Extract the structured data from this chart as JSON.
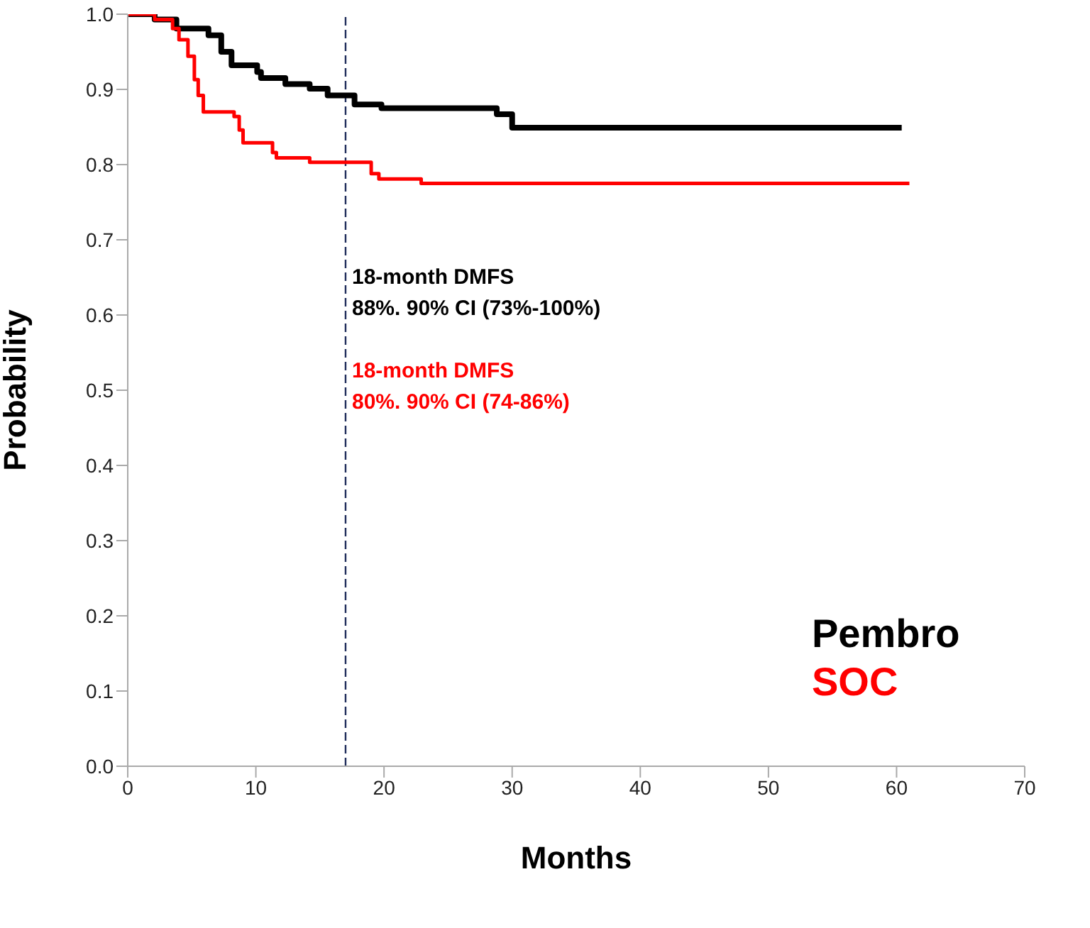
{
  "chart_data": {
    "type": "step",
    "xlabel": "Months",
    "ylabel": "Probability",
    "xlim": [
      0,
      70
    ],
    "xticks": [
      0,
      10,
      20,
      30,
      40,
      50,
      60,
      70
    ],
    "ylim": [
      0,
      1
    ],
    "yticks": [
      {
        "value": 0,
        "label": "0.0"
      },
      0.1,
      0.2,
      0.3,
      0.4,
      0.5,
      0.6,
      0.7,
      0.8,
      0.9,
      {
        "value": 1,
        "label": "1.0"
      }
    ],
    "series": [
      {
        "name": "Pembro",
        "color": "#000000",
        "x": [
          0,
          2.1,
          3.8,
          6.3,
          7.3,
          8.1,
          10.1,
          10.4,
          12.3,
          14.2,
          15.6,
          17.7,
          19.8,
          28.8,
          30,
          60.4
        ],
        "values": [
          1,
          0.993,
          0.981,
          0.972,
          0.95,
          0.932,
          0.923,
          0.915,
          0.907,
          0.901,
          0.892,
          0.88,
          0.875,
          0.867,
          0.849,
          0.849
        ]
      },
      {
        "name": "SOC",
        "color": "#ff0000",
        "x": [
          0,
          2.1,
          3.5,
          4,
          4.7,
          5.2,
          5.5,
          5.9,
          8.3,
          8.7,
          9,
          11.3,
          11.6,
          14.2,
          19,
          19.6,
          22.9,
          61
        ],
        "values": [
          1,
          0.993,
          0.981,
          0.966,
          0.944,
          0.913,
          0.892,
          0.87,
          0.864,
          0.846,
          0.829,
          0.816,
          0.809,
          0.803,
          0.788,
          0.781,
          0.775,
          0.775
        ]
      }
    ],
    "ref_lines": [
      {
        "axis": "x",
        "value": 17,
        "color": "#1f2d5a",
        "line_style": "dashed"
      }
    ],
    "annotations": [
      "18-month DMFS\n88%. 90% CI (73%-100%)",
      "18-month DMFS\n80%. 90% CI (74-86%)"
    ],
    "legend": "bottom right"
  }
}
